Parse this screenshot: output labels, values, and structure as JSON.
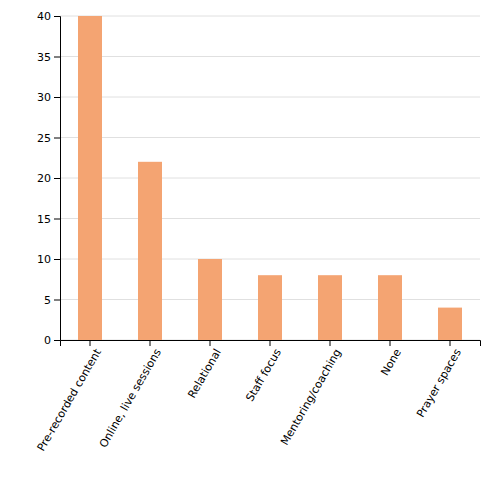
{
  "chart_data": {
    "type": "bar",
    "categories": [
      "Pre-recorded content",
      "Online, live sessions",
      "Relational",
      "Staff focus",
      "Mentoring/coaching",
      "None",
      "Prayer spaces"
    ],
    "values": [
      40,
      22,
      10,
      8,
      8,
      8,
      4
    ],
    "color": "#F4A472",
    "ylim": [
      0,
      40
    ],
    "yticks": [
      0,
      5,
      10,
      15,
      20,
      25,
      30,
      35,
      40
    ],
    "grid": true
  }
}
